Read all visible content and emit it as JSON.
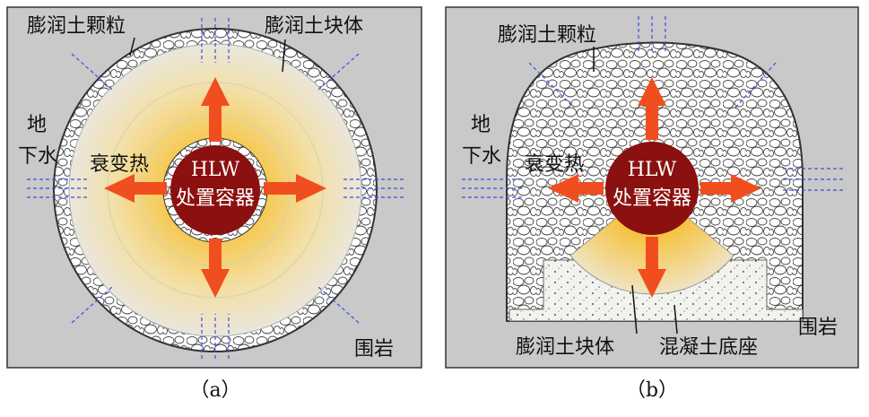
{
  "panel_a": {
    "pellet_label": "膨润土颗粒",
    "block_label": "膨润土块体",
    "groundwater_label": [
      "地",
      "下水"
    ],
    "heat_label": "衰变热",
    "canister_label": [
      "HLW",
      "处置容器"
    ],
    "rock_label": "围岩",
    "caption": "（a）"
  },
  "panel_b": {
    "pellet_label": "膨润土颗粒",
    "groundwater_label": [
      "地",
      "下水"
    ],
    "heat_label": "衰变热",
    "canister_label": [
      "HLW",
      "处置容器"
    ],
    "block_label": "膨润土块体",
    "base_label": "混凝土底座",
    "rock_label": "围岩",
    "caption": "（b）"
  }
}
